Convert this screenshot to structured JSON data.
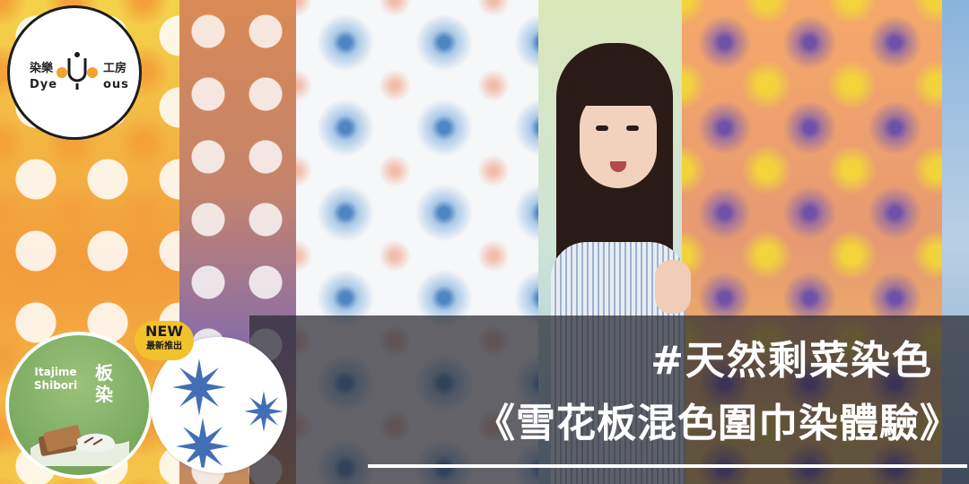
{
  "logo": {
    "text_top_left": "染樂",
    "text_top_right": "工房",
    "text_bottom_left": "Dye",
    "text_bottom_right": "ous"
  },
  "headline": {
    "hashtag": "#天然剩菜染色",
    "title": "《雪花板混色圍巾染體驗》"
  },
  "badge_new": {
    "label": "NEW",
    "sub_label": "最新推出"
  },
  "badge_itajime": {
    "latin_line1": "Itajime",
    "latin_line2": "Shibori",
    "kanji1": "板",
    "kanji2": "染"
  },
  "colors": {
    "banner": "#28282f",
    "new_badge": "#f1c22b",
    "itajime_green": "#6b9f55",
    "pattern_blue": "#2f5fae"
  }
}
